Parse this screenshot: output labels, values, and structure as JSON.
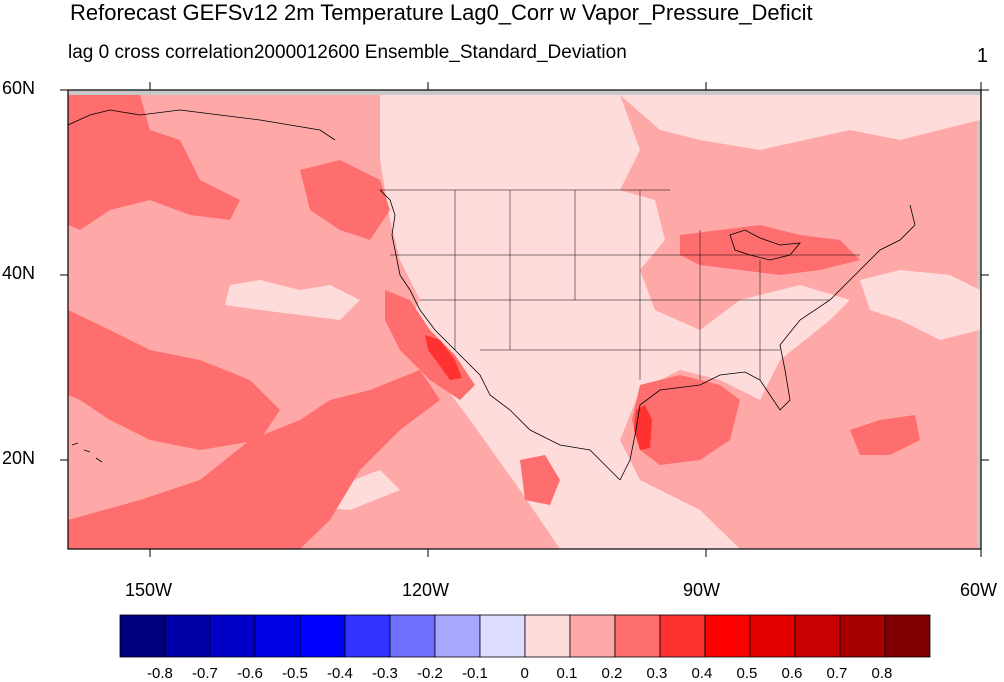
{
  "title": "Reforecast GEFSv12 2m Temperature Lag0_Corr w Vapor_Pressure_Deficit",
  "subtitle": "lag 0 cross correlation2000012600 Ensemble_Standard_Deviation",
  "right_label": "1",
  "lat_labels": [
    "60N",
    "40N",
    "20N"
  ],
  "lon_labels": [
    "150W",
    "120W",
    "90W",
    "60W"
  ],
  "colorbar": {
    "colors": [
      "#00007f",
      "#0000a8",
      "#0000c8",
      "#0000e4",
      "#0000ff",
      "#3232ff",
      "#6e6eff",
      "#a8a8ff",
      "#dcdcff",
      "#ffdcdc",
      "#ffa8a8",
      "#ff6e6e",
      "#ff3232",
      "#ff0000",
      "#e40000",
      "#c80000",
      "#a80000",
      "#7f0000"
    ],
    "labels": [
      "-0.8",
      "-0.7",
      "-0.6",
      "-0.5",
      "-0.4",
      "-0.3",
      "-0.2",
      "-0.1",
      "0",
      "0.1",
      "0.2",
      "0.3",
      "0.4",
      "0.5",
      "0.6",
      "0.7",
      "0.8"
    ]
  },
  "map_colors": {
    "level_0_01": "#ffdcdc",
    "level_01_02": "#ffa8a8",
    "level_02_03": "#ff6e6e",
    "level_03_04": "#ff3232",
    "missing": "#c8c8c8"
  }
}
